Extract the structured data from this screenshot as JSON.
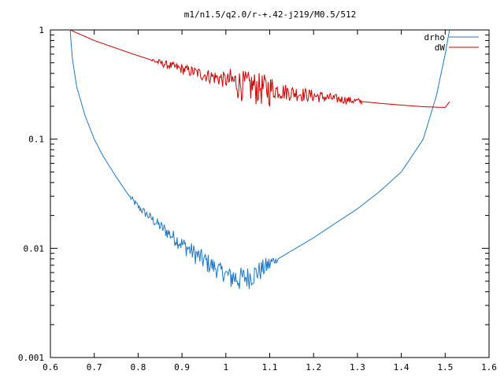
{
  "chart_data": {
    "type": "line",
    "title": "m1/n1.5/q2.0/r-+.42-j219/M0.5/512",
    "xlabel": "",
    "ylabel": "",
    "xlim": [
      0.6,
      1.6
    ],
    "ylim": [
      0.001,
      1
    ],
    "yscale": "log",
    "x_ticks": [
      "0.6",
      "0.7",
      "0.8",
      "0.9",
      "1",
      "1.1",
      "1.2",
      "1.3",
      "1.4",
      "1.5",
      "1.6"
    ],
    "y_ticks": [
      "0.001",
      "0.01",
      "0.1",
      "1"
    ],
    "grid": false,
    "legend_position": "top-right",
    "series": [
      {
        "name": "drho",
        "color": "#1f77c4",
        "noise_range": [
          0.78,
          1.12
        ],
        "x": [
          0.645,
          0.65,
          0.66,
          0.68,
          0.7,
          0.72,
          0.75,
          0.78,
          0.8,
          0.85,
          0.9,
          0.95,
          1.0,
          1.03,
          1.05,
          1.07,
          1.1,
          1.15,
          1.2,
          1.25,
          1.3,
          1.35,
          1.4,
          1.45,
          1.48,
          1.5,
          1.51
        ],
        "y": [
          1.0,
          0.55,
          0.3,
          0.16,
          0.1,
          0.07,
          0.045,
          0.03,
          0.024,
          0.016,
          0.011,
          0.0078,
          0.0058,
          0.0053,
          0.0055,
          0.006,
          0.0072,
          0.0095,
          0.0125,
          0.017,
          0.023,
          0.033,
          0.05,
          0.1,
          0.25,
          0.6,
          1.0
        ]
      },
      {
        "name": "dW",
        "color": "#cc0000",
        "noise_range": [
          0.83,
          1.31
        ],
        "x": [
          0.645,
          0.7,
          0.75,
          0.8,
          0.85,
          0.9,
          0.95,
          1.0,
          1.05,
          1.1,
          1.15,
          1.2,
          1.25,
          1.3,
          1.35,
          1.4,
          1.45,
          1.5,
          1.51
        ],
        "y": [
          1.0,
          0.8,
          0.68,
          0.58,
          0.5,
          0.44,
          0.39,
          0.35,
          0.315,
          0.29,
          0.268,
          0.25,
          0.235,
          0.223,
          0.213,
          0.205,
          0.198,
          0.195,
          0.22
        ]
      }
    ]
  }
}
